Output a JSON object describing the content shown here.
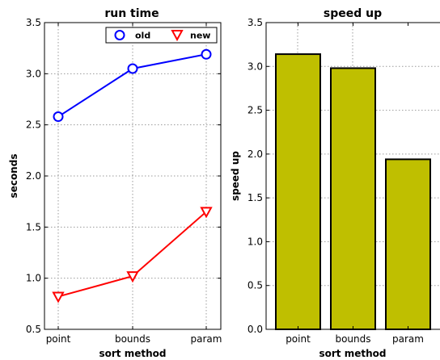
{
  "chart_data": [
    {
      "type": "line",
      "title": "run time",
      "xlabel": "sort method",
      "ylabel": "seconds",
      "categories": [
        "point",
        "bounds",
        "param"
      ],
      "ylim": [
        0.5,
        3.5
      ],
      "yticks": [
        "0.5",
        "1.0",
        "1.5",
        "2.0",
        "2.5",
        "3.0",
        "3.5"
      ],
      "grid": true,
      "legend_position": "top-right",
      "series": [
        {
          "name": "old",
          "values": [
            2.58,
            3.05,
            3.19
          ],
          "color": "#0000ff",
          "marker": "circle"
        },
        {
          "name": "new",
          "values": [
            0.82,
            1.02,
            1.65
          ],
          "color": "#ff0000",
          "marker": "triangle-down"
        }
      ]
    },
    {
      "type": "bar",
      "title": "speed up",
      "xlabel": "sort method",
      "ylabel": "speed up",
      "categories": [
        "point",
        "bounds",
        "param"
      ],
      "values": [
        3.14,
        2.98,
        1.94
      ],
      "ylim": [
        0.0,
        3.5
      ],
      "yticks": [
        "0.0",
        "0.5",
        "1.0",
        "1.5",
        "2.0",
        "2.5",
        "3.0",
        "3.5"
      ],
      "grid": true,
      "color": "#bfbf00"
    }
  ]
}
